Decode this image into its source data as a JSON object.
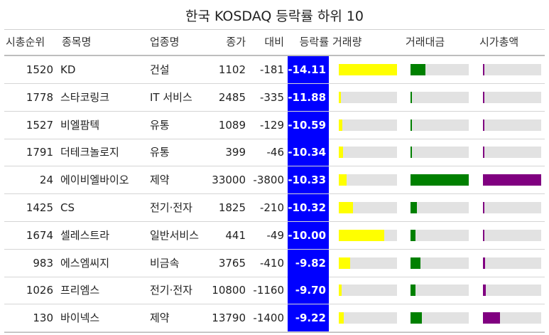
{
  "title": "한국 KOSDAQ 등락률 하위 10",
  "headers": {
    "rank": "시총순위",
    "name": "종목명",
    "sector": "업종명",
    "close": "종가",
    "change": "대비",
    "rate": "등락률",
    "volume": "거래량",
    "value": "거래대금",
    "cap": "시가총액"
  },
  "colors": {
    "rate_bg": "#0000ff",
    "volume_bar": "#ffff00",
    "value_bar": "#008000",
    "cap_bar": "#800080",
    "bar_bg": "#e2e2e2"
  },
  "rows": [
    {
      "rank": "1520",
      "name": "KD",
      "sector": "건설",
      "close": "1102",
      "change": "-181",
      "rate": "-14.11",
      "volume": 1.0,
      "value": 0.25,
      "cap": 0.02
    },
    {
      "rank": "1778",
      "name": "스타코링크",
      "sector": "IT 서비스",
      "close": "2485",
      "change": "-335",
      "rate": "-11.88",
      "volume": 0.04,
      "value": 0.02,
      "cap": 0.02
    },
    {
      "rank": "1527",
      "name": "비엘팜텍",
      "sector": "유통",
      "close": "1089",
      "change": "-129",
      "rate": "-10.59",
      "volume": 0.06,
      "value": 0.02,
      "cap": 0.02
    },
    {
      "rank": "1791",
      "name": "더테크놀로지",
      "sector": "유통",
      "close": "399",
      "change": "-46",
      "rate": "-10.34",
      "volume": 0.07,
      "value": 0.02,
      "cap": 0.02
    },
    {
      "rank": "24",
      "name": "에이비엘바이오",
      "sector": "제약",
      "close": "33000",
      "change": "-3800",
      "rate": "-10.33",
      "volume": 0.13,
      "value": 1.0,
      "cap": 1.0
    },
    {
      "rank": "1425",
      "name": "CS",
      "sector": "전기·전자",
      "close": "1825",
      "change": "-210",
      "rate": "-10.32",
      "volume": 0.24,
      "value": 0.11,
      "cap": 0.02
    },
    {
      "rank": "1674",
      "name": "셀레스트라",
      "sector": "일반서비스",
      "close": "441",
      "change": "-49",
      "rate": "-10.00",
      "volume": 0.78,
      "value": 0.09,
      "cap": 0.02
    },
    {
      "rank": "983",
      "name": "에스엠씨지",
      "sector": "비금속",
      "close": "3765",
      "change": "-410",
      "rate": "-9.82",
      "volume": 0.19,
      "value": 0.17,
      "cap": 0.04
    },
    {
      "rank": "1026",
      "name": "프리엠스",
      "sector": "전기·전자",
      "close": "10800",
      "change": "-1160",
      "rate": "-9.70",
      "volume": 0.05,
      "value": 0.09,
      "cap": 0.05
    },
    {
      "rank": "130",
      "name": "바이넥스",
      "sector": "제약",
      "close": "13790",
      "change": "-1400",
      "rate": "-9.22",
      "volume": 0.08,
      "value": 0.2,
      "cap": 0.29
    }
  ]
}
